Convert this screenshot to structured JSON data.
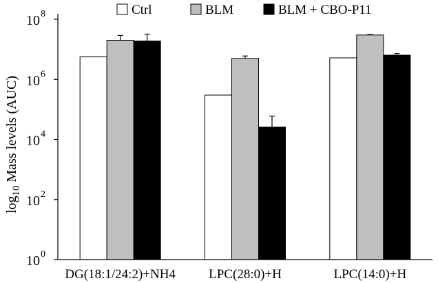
{
  "chart_data": {
    "type": "bar",
    "title": "",
    "xlabel": "",
    "ylabel_parts": {
      "prefix": "log",
      "sub": "10",
      "rest": " Mass levels (AUC)"
    },
    "y_scale": "log",
    "ylim": [
      1,
      100000000
    ],
    "y_ticks": [
      {
        "value": 1,
        "base": "10",
        "exp": "0"
      },
      {
        "value": 100,
        "base": "10",
        "exp": "2"
      },
      {
        "value": 10000,
        "base": "10",
        "exp": "4"
      },
      {
        "value": 1000000,
        "base": "10",
        "exp": "6"
      },
      {
        "value": 100000000,
        "base": "10",
        "exp": "8"
      }
    ],
    "categories": [
      "DG(18:1/24:2)+NH4",
      "LPC(28:0)+H",
      "LPC(14:0)+H"
    ],
    "legend_position": "top",
    "grid": false,
    "series": [
      {
        "name": "Ctrl",
        "color": "#ffffff",
        "values": [
          5600000,
          300000,
          5200000
        ],
        "err_high": [
          null,
          null,
          null
        ]
      },
      {
        "name": "BLM",
        "color": "#bfbfbf",
        "values": [
          20000000,
          5000000,
          30000000
        ],
        "err_high": [
          29000000,
          6000000,
          31000000
        ]
      },
      {
        "name": "BLM + CBO-P11",
        "color": "#000000",
        "values": [
          19000000,
          26000,
          6400000
        ],
        "err_high": [
          32000000,
          60000,
          7300000
        ]
      }
    ]
  }
}
